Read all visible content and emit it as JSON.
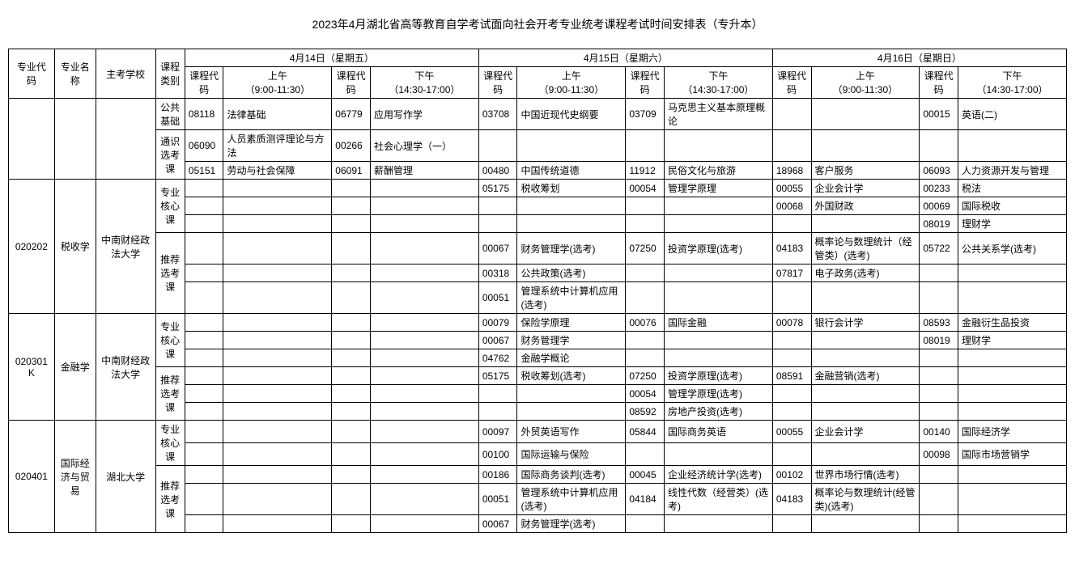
{
  "title": "2023年4月湖北省高等教育自学考试面向社会开考专业统考课程考试时间安排表（专升本）",
  "headers": {
    "major_code": "专业代码",
    "major_name": "专业名称",
    "school": "主考学校",
    "course_type": "课程类别",
    "course_code": "课程代码",
    "day1": "4月14日（星期五）",
    "day2": "4月15日（星期六）",
    "day3": "4月16日（星期日）",
    "am": "上午",
    "am_time": "（9:00-11:30）",
    "pm": "下午",
    "pm_time": "（14:30-17:00）"
  },
  "ctypes": {
    "gg": "公共基础",
    "tx": "通识选考课",
    "hx": "专业核心课",
    "tj": "推荐选考课"
  },
  "majors": {
    "m1": {
      "code": "020202",
      "name": "税收学",
      "school": "中南财经政法大学"
    },
    "m2": {
      "code": "020301K",
      "name": "金融学",
      "school": "中南财经政法大学"
    },
    "m3": {
      "code": "020401",
      "name": "国际经济与贸易",
      "school": "湖北大学"
    }
  },
  "rows": {
    "r0": {
      "d1a_c": "08118",
      "d1a_n": "法律基础",
      "d1p_c": "06779",
      "d1p_n": "应用写作学",
      "d2a_c": "03708",
      "d2a_n": "中国近现代史纲要",
      "d2p_c": "03709",
      "d2p_n": "马克思主义基本原理概论",
      "d3a_c": "",
      "d3a_n": "",
      "d3p_c": "00015",
      "d3p_n": "英语(二)"
    },
    "r1": {
      "d1a_c": "06090",
      "d1a_n": "人员素质测评理论与方法",
      "d1p_c": "00266",
      "d1p_n": "社会心理学（一）",
      "d2a_c": "",
      "d2a_n": "",
      "d2p_c": "",
      "d2p_n": "",
      "d3a_c": "",
      "d3a_n": "",
      "d3p_c": "",
      "d3p_n": ""
    },
    "r2": {
      "d1a_c": "05151",
      "d1a_n": "劳动与社会保障",
      "d1p_c": "06091",
      "d1p_n": "薪酬管理",
      "d2a_c": "00480",
      "d2a_n": "中国传统道德",
      "d2p_c": "11912",
      "d2p_n": "民俗文化与旅游",
      "d3a_c": "18968",
      "d3a_n": "客户服务",
      "d3p_c": "06093",
      "d3p_n": "人力资源开发与管理"
    },
    "r3": {
      "d1a_c": "",
      "d1a_n": "",
      "d1p_c": "",
      "d1p_n": "",
      "d2a_c": "05175",
      "d2a_n": "税收筹划",
      "d2p_c": "00054",
      "d2p_n": "管理学原理",
      "d3a_c": "00055",
      "d3a_n": "企业会计学",
      "d3p_c": "00233",
      "d3p_n": "税法"
    },
    "r4": {
      "d1a_c": "",
      "d1a_n": "",
      "d1p_c": "",
      "d1p_n": "",
      "d2a_c": "",
      "d2a_n": "",
      "d2p_c": "",
      "d2p_n": "",
      "d3a_c": "00068",
      "d3a_n": "外国财政",
      "d3p_c": "00069",
      "d3p_n": "国际税收"
    },
    "r5": {
      "d1a_c": "",
      "d1a_n": "",
      "d1p_c": "",
      "d1p_n": "",
      "d2a_c": "",
      "d2a_n": "",
      "d2p_c": "",
      "d2p_n": "",
      "d3a_c": "",
      "d3a_n": "",
      "d3p_c": "08019",
      "d3p_n": "理财学"
    },
    "r6": {
      "d1a_c": "",
      "d1a_n": "",
      "d1p_c": "",
      "d1p_n": "",
      "d2a_c": "00067",
      "d2a_n": "财务管理学(选考)",
      "d2p_c": "07250",
      "d2p_n": "投资学原理(选考)",
      "d3a_c": "04183",
      "d3a_n": "概率论与数理统计（经管类）(选考)",
      "d3p_c": "05722",
      "d3p_n": "公共关系学(选考)"
    },
    "r7": {
      "d1a_c": "",
      "d1a_n": "",
      "d1p_c": "",
      "d1p_n": "",
      "d2a_c": "00318",
      "d2a_n": "公共政策(选考)",
      "d2p_c": "",
      "d2p_n": "",
      "d3a_c": "07817",
      "d3a_n": "电子政务(选考)",
      "d3p_c": "",
      "d3p_n": ""
    },
    "r8": {
      "d1a_c": "",
      "d1a_n": "",
      "d1p_c": "",
      "d1p_n": "",
      "d2a_c": "00051",
      "d2a_n": "管理系统中计算机应用(选考)",
      "d2p_c": "",
      "d2p_n": "",
      "d3a_c": "",
      "d3a_n": "",
      "d3p_c": "",
      "d3p_n": ""
    },
    "r9": {
      "d1a_c": "",
      "d1a_n": "",
      "d1p_c": "",
      "d1p_n": "",
      "d2a_c": "00079",
      "d2a_n": "保险学原理",
      "d2p_c": "00076",
      "d2p_n": "国际金融",
      "d3a_c": "00078",
      "d3a_n": "银行会计学",
      "d3p_c": "08593",
      "d3p_n": "金融衍生品投资"
    },
    "r10": {
      "d1a_c": "",
      "d1a_n": "",
      "d1p_c": "",
      "d1p_n": "",
      "d2a_c": "00067",
      "d2a_n": "财务管理学",
      "d2p_c": "",
      "d2p_n": "",
      "d3a_c": "",
      "d3a_n": "",
      "d3p_c": "08019",
      "d3p_n": "理财学"
    },
    "r11": {
      "d1a_c": "",
      "d1a_n": "",
      "d1p_c": "",
      "d1p_n": "",
      "d2a_c": "04762",
      "d2a_n": "金融学概论",
      "d2p_c": "",
      "d2p_n": "",
      "d3a_c": "",
      "d3a_n": "",
      "d3p_c": "",
      "d3p_n": ""
    },
    "r12": {
      "d1a_c": "",
      "d1a_n": "",
      "d1p_c": "",
      "d1p_n": "",
      "d2a_c": "05175",
      "d2a_n": "税收筹划(选考)",
      "d2p_c": "07250",
      "d2p_n": "投资学原理(选考)",
      "d3a_c": "08591",
      "d3a_n": "金融营销(选考)",
      "d3p_c": "",
      "d3p_n": ""
    },
    "r13": {
      "d1a_c": "",
      "d1a_n": "",
      "d1p_c": "",
      "d1p_n": "",
      "d2a_c": "",
      "d2a_n": "",
      "d2p_c": "00054",
      "d2p_n": "管理学原理(选考)",
      "d3a_c": "",
      "d3a_n": "",
      "d3p_c": "",
      "d3p_n": ""
    },
    "r14": {
      "d1a_c": "",
      "d1a_n": "",
      "d1p_c": "",
      "d1p_n": "",
      "d2a_c": "",
      "d2a_n": "",
      "d2p_c": "08592",
      "d2p_n": "房地产投资(选考)",
      "d3a_c": "",
      "d3a_n": "",
      "d3p_c": "",
      "d3p_n": ""
    },
    "r15": {
      "d1a_c": "",
      "d1a_n": "",
      "d1p_c": "",
      "d1p_n": "",
      "d2a_c": "00097",
      "d2a_n": "外贸英语写作",
      "d2p_c": "05844",
      "d2p_n": "国际商务英语",
      "d3a_c": "00055",
      "d3a_n": "企业会计学",
      "d3p_c": "00140",
      "d3p_n": "国际经济学"
    },
    "r16": {
      "d1a_c": "",
      "d1a_n": "",
      "d1p_c": "",
      "d1p_n": "",
      "d2a_c": "00100",
      "d2a_n": "国际运输与保险",
      "d2p_c": "",
      "d2p_n": "",
      "d3a_c": "",
      "d3a_n": "",
      "d3p_c": "00098",
      "d3p_n": "国际市场营销学"
    },
    "r17": {
      "d1a_c": "",
      "d1a_n": "",
      "d1p_c": "",
      "d1p_n": "",
      "d2a_c": "00186",
      "d2a_n": "国际商务谈判(选考)",
      "d2p_c": "00045",
      "d2p_n": "企业经济统计学(选考)",
      "d3a_c": "00102",
      "d3a_n": "世界市场行情(选考)",
      "d3p_c": "",
      "d3p_n": ""
    },
    "r18": {
      "d1a_c": "",
      "d1a_n": "",
      "d1p_c": "",
      "d1p_n": "",
      "d2a_c": "00051",
      "d2a_n": "管理系统中计算机应用(选考)",
      "d2p_c": "04184",
      "d2p_n": "线性代数（经营类）(选考)",
      "d3a_c": "04183",
      "d3a_n": "概率论与数理统计(经管类)(选考)",
      "d3p_c": "",
      "d3p_n": ""
    },
    "r19": {
      "d1a_c": "",
      "d1a_n": "",
      "d1p_c": "",
      "d1p_n": "",
      "d2a_c": "00067",
      "d2a_n": "财务管理学(选考)",
      "d2p_c": "",
      "d2p_n": "",
      "d3a_c": "",
      "d3a_n": "",
      "d3p_c": "",
      "d3p_n": ""
    }
  }
}
